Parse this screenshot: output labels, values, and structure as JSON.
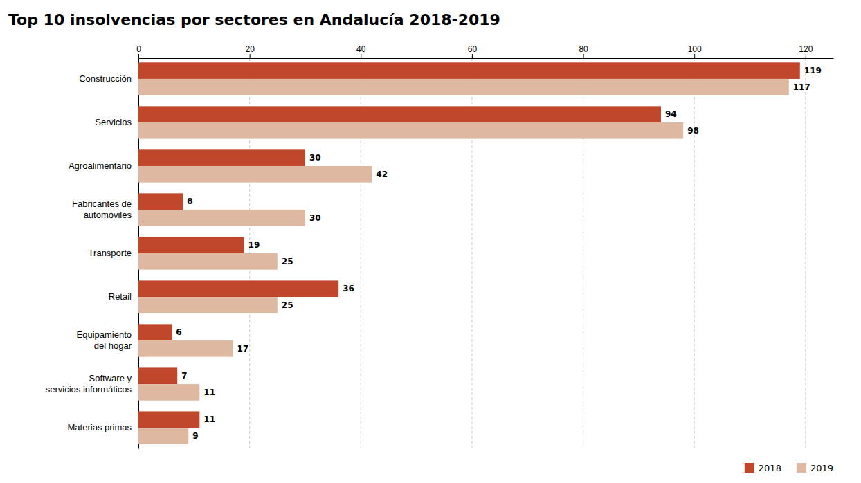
{
  "chart_data": {
    "type": "bar",
    "orientation": "horizontal",
    "title": "Top 10 insolvencias por sectores en Andalucía 2018-2019",
    "categories": [
      "Construcción",
      "Servicios",
      "Agroalimentario",
      "Fabricantes de\nautomóviles",
      "Transporte",
      "Retail",
      "Equipamiento\ndel hogar",
      "Software y\nservicios informáticos",
      "Materias primas"
    ],
    "series": [
      {
        "name": "2018",
        "color": "#c0472b",
        "values": [
          119,
          94,
          30,
          8,
          19,
          36,
          6,
          7,
          11
        ]
      },
      {
        "name": "2019",
        "color": "#deb8a0",
        "values": [
          117,
          98,
          42,
          30,
          25,
          25,
          17,
          11,
          9
        ]
      }
    ],
    "xlim": [
      0,
      125
    ],
    "xticks": [
      0,
      20,
      40,
      60,
      80,
      100,
      120
    ],
    "grid": true,
    "legend": "lower right",
    "data_labels": true
  }
}
